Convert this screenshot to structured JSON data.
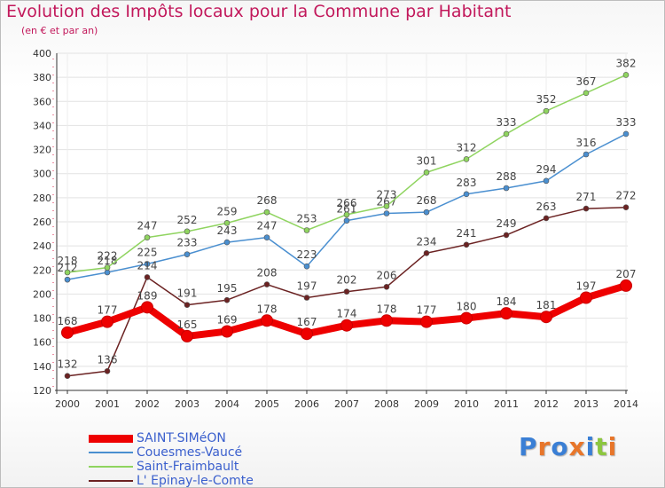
{
  "title": "Evolution des Impôts locaux pour la Commune par Habitant",
  "subtitle": "(en € et par an)",
  "brand": "Proxiti",
  "chart_data": {
    "type": "line",
    "title": "Evolution des Impôts locaux pour la Commune par Habitant",
    "subtitle": "(en € et par an)",
    "categories": [
      "2000",
      "2001",
      "2002",
      "2003",
      "2004",
      "2005",
      "2006",
      "2007",
      "2008",
      "2009",
      "2010",
      "2011",
      "2012",
      "2013",
      "2014"
    ],
    "ylim": [
      120,
      400
    ],
    "yticks": [
      120,
      140,
      160,
      180,
      200,
      220,
      240,
      260,
      280,
      300,
      320,
      340,
      360,
      380,
      400
    ],
    "grid": true,
    "legend_position": "bottom-left",
    "series": [
      {
        "name": "SAINT-SIMéON",
        "color": "#ee0000",
        "emphasis": true,
        "values": [
          168,
          177,
          189,
          165,
          169,
          178,
          167,
          174,
          178,
          177,
          180,
          184,
          181,
          197,
          207
        ]
      },
      {
        "name": "Couesmes-Vaucé",
        "color": "#4a8fd0",
        "emphasis": false,
        "values": [
          212,
          218,
          225,
          233,
          243,
          247,
          223,
          261,
          267,
          268,
          283,
          288,
          294,
          316,
          333
        ]
      },
      {
        "name": "Saint-Fraimbault",
        "color": "#8fd45f",
        "emphasis": false,
        "values": [
          218,
          222,
          247,
          252,
          259,
          268,
          253,
          266,
          273,
          301,
          312,
          333,
          352,
          367,
          382
        ]
      },
      {
        "name": "L' Epinay-le-Comte",
        "color": "#6b2222",
        "emphasis": false,
        "values": [
          132,
          136,
          214,
          191,
          195,
          208,
          197,
          202,
          206,
          234,
          241,
          249,
          263,
          271,
          272
        ]
      }
    ]
  }
}
